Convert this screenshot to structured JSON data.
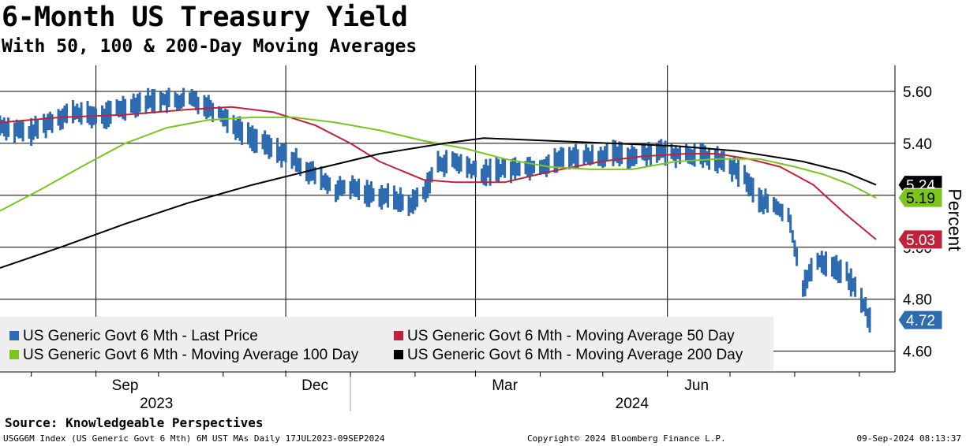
{
  "header": {
    "title": "6-Month US Treasury Yield",
    "subtitle": "With 50, 100 & 200-Day Moving Averages"
  },
  "footer": {
    "source": "Source: Knowledgeable Perspectives",
    "index_info": "USGG6M Index (US Generic Govt 6 Mth) 6M UST MAs  Daily 17JUL2023-09SEP2024",
    "copyright": "Copyright© 2024 Bloomberg Finance L.P.",
    "timestamp": "09-Sep-2024 08:13:37"
  },
  "chart_data": {
    "type": "line",
    "title": "6-Month US Treasury Yield",
    "subtitle": "With 50, 100 & 200-Day Moving Averages",
    "ylabel": "Percent",
    "xlabel": "",
    "ylim": [
      4.52,
      5.7
    ],
    "y_ticks": [
      4.6,
      4.8,
      5.0,
      5.2,
      5.4,
      5.6
    ],
    "y_tick_labels": [
      "4.60",
      "4.80",
      "5.00",
      "5.20",
      "5.40",
      "5.60"
    ],
    "x_range": [
      "2023-07-17",
      "2024-09-09"
    ],
    "month_labels": [
      {
        "label": "Sep",
        "date": "2023-09-15"
      },
      {
        "label": "Dec",
        "date": "2023-12-15"
      },
      {
        "label": "Mar",
        "date": "2024-03-15"
      },
      {
        "label": "Jun",
        "date": "2024-06-15"
      }
    ],
    "year_labels": [
      {
        "label": "2023",
        "date": "2023-09-30"
      },
      {
        "label": "2024",
        "date": "2024-05-15"
      }
    ],
    "grid": true,
    "legend_position": "bottom-left",
    "series": [
      {
        "name": "US Generic Govt 6 Mth - Last Price",
        "kind": "daily-bars",
        "color": "#2e6bb0",
        "last_value": "4.72",
        "points": [
          [
            "2023-07-17",
            5.47
          ],
          [
            "2023-07-24",
            5.45
          ],
          [
            "2023-07-31",
            5.44
          ],
          [
            "2023-08-07",
            5.47
          ],
          [
            "2023-08-14",
            5.5
          ],
          [
            "2023-08-21",
            5.52
          ],
          [
            "2023-08-28",
            5.51
          ],
          [
            "2023-09-04",
            5.5
          ],
          [
            "2023-09-11",
            5.53
          ],
          [
            "2023-09-18",
            5.55
          ],
          [
            "2023-09-25",
            5.56
          ],
          [
            "2023-10-02",
            5.57
          ],
          [
            "2023-10-09",
            5.56
          ],
          [
            "2023-10-16",
            5.57
          ],
          [
            "2023-10-23",
            5.55
          ],
          [
            "2023-10-30",
            5.52
          ],
          [
            "2023-11-06",
            5.47
          ],
          [
            "2023-11-13",
            5.43
          ],
          [
            "2023-11-20",
            5.4
          ],
          [
            "2023-11-27",
            5.37
          ],
          [
            "2023-12-04",
            5.34
          ],
          [
            "2023-12-11",
            5.3
          ],
          [
            "2023-12-18",
            5.26
          ],
          [
            "2023-12-25",
            5.22
          ],
          [
            "2024-01-01",
            5.23
          ],
          [
            "2024-01-08",
            5.21
          ],
          [
            "2024-01-15",
            5.2
          ],
          [
            "2024-01-22",
            5.19
          ],
          [
            "2024-01-29",
            5.16
          ],
          [
            "2024-02-05",
            5.21
          ],
          [
            "2024-02-12",
            5.32
          ],
          [
            "2024-02-19",
            5.33
          ],
          [
            "2024-02-26",
            5.31
          ],
          [
            "2024-03-04",
            5.28
          ],
          [
            "2024-03-11",
            5.3
          ],
          [
            "2024-03-18",
            5.3
          ],
          [
            "2024-03-25",
            5.31
          ],
          [
            "2024-04-01",
            5.31
          ],
          [
            "2024-04-08",
            5.33
          ],
          [
            "2024-04-15",
            5.35
          ],
          [
            "2024-04-22",
            5.35
          ],
          [
            "2024-04-29",
            5.35
          ],
          [
            "2024-05-06",
            5.36
          ],
          [
            "2024-05-13",
            5.35
          ],
          [
            "2024-05-20",
            5.36
          ],
          [
            "2024-05-27",
            5.37
          ],
          [
            "2024-06-03",
            5.36
          ],
          [
            "2024-06-10",
            5.36
          ],
          [
            "2024-06-17",
            5.35
          ],
          [
            "2024-06-24",
            5.34
          ],
          [
            "2024-07-01",
            5.31
          ],
          [
            "2024-07-08",
            5.27
          ],
          [
            "2024-07-15",
            5.18
          ],
          [
            "2024-07-22",
            5.16
          ],
          [
            "2024-07-29",
            5.12
          ],
          [
            "2024-08-05",
            4.85
          ],
          [
            "2024-08-12",
            4.95
          ],
          [
            "2024-08-19",
            4.93
          ],
          [
            "2024-08-26",
            4.89
          ],
          [
            "2024-09-02",
            4.8
          ],
          [
            "2024-09-06",
            4.72
          ]
        ]
      },
      {
        "name": "US Generic Govt 6 Mth - Moving Average 50 Day",
        "kind": "line",
        "color": "#c0223b",
        "last_value": "5.03",
        "points": [
          [
            "2023-07-17",
            5.48
          ],
          [
            "2023-08-15",
            5.5
          ],
          [
            "2023-09-15",
            5.51
          ],
          [
            "2023-10-15",
            5.53
          ],
          [
            "2023-11-05",
            5.54
          ],
          [
            "2023-11-25",
            5.52
          ],
          [
            "2023-12-15",
            5.47
          ],
          [
            "2024-01-01",
            5.4
          ],
          [
            "2024-01-15",
            5.33
          ],
          [
            "2024-02-05",
            5.26
          ],
          [
            "2024-02-20",
            5.25
          ],
          [
            "2024-03-15",
            5.25
          ],
          [
            "2024-04-05",
            5.29
          ],
          [
            "2024-04-30",
            5.33
          ],
          [
            "2024-05-20",
            5.35
          ],
          [
            "2024-06-10",
            5.36
          ],
          [
            "2024-06-25",
            5.36
          ],
          [
            "2024-07-10",
            5.34
          ],
          [
            "2024-07-25",
            5.31
          ],
          [
            "2024-08-10",
            5.24
          ],
          [
            "2024-08-25",
            5.13
          ],
          [
            "2024-09-09",
            5.03
          ]
        ]
      },
      {
        "name": "US Generic Govt 6 Mth - Moving Average 100 Day",
        "kind": "line",
        "color": "#7cc41f",
        "last_value": "5.19",
        "points": [
          [
            "2023-07-17",
            5.14
          ],
          [
            "2023-08-05",
            5.22
          ],
          [
            "2023-08-25",
            5.31
          ],
          [
            "2023-09-15",
            5.4
          ],
          [
            "2023-10-05",
            5.46
          ],
          [
            "2023-10-25",
            5.49
          ],
          [
            "2023-11-15",
            5.5
          ],
          [
            "2023-12-05",
            5.5
          ],
          [
            "2023-12-25",
            5.48
          ],
          [
            "2024-01-15",
            5.45
          ],
          [
            "2024-02-05",
            5.41
          ],
          [
            "2024-02-25",
            5.38
          ],
          [
            "2024-03-15",
            5.34
          ],
          [
            "2024-04-05",
            5.31
          ],
          [
            "2024-04-25",
            5.3
          ],
          [
            "2024-05-15",
            5.3
          ],
          [
            "2024-06-05",
            5.33
          ],
          [
            "2024-06-25",
            5.34
          ],
          [
            "2024-07-15",
            5.34
          ],
          [
            "2024-08-01",
            5.31
          ],
          [
            "2024-08-15",
            5.28
          ],
          [
            "2024-08-28",
            5.24
          ],
          [
            "2024-09-09",
            5.19
          ]
        ]
      },
      {
        "name": "US Generic Govt 6 Mth - Moving Average 200 Day",
        "kind": "line",
        "color": "#000000",
        "last_value": "5.24",
        "points": [
          [
            "2023-07-17",
            4.92
          ],
          [
            "2023-08-15",
            5.0
          ],
          [
            "2023-09-15",
            5.09
          ],
          [
            "2023-10-15",
            5.17
          ],
          [
            "2023-11-15",
            5.24
          ],
          [
            "2023-12-15",
            5.3
          ],
          [
            "2024-01-15",
            5.36
          ],
          [
            "2024-02-15",
            5.4
          ],
          [
            "2024-03-05",
            5.42
          ],
          [
            "2024-04-05",
            5.41
          ],
          [
            "2024-05-05",
            5.4
          ],
          [
            "2024-06-05",
            5.39
          ],
          [
            "2024-07-05",
            5.37
          ],
          [
            "2024-08-05",
            5.33
          ],
          [
            "2024-08-25",
            5.29
          ],
          [
            "2024-09-09",
            5.24
          ]
        ]
      }
    ]
  }
}
